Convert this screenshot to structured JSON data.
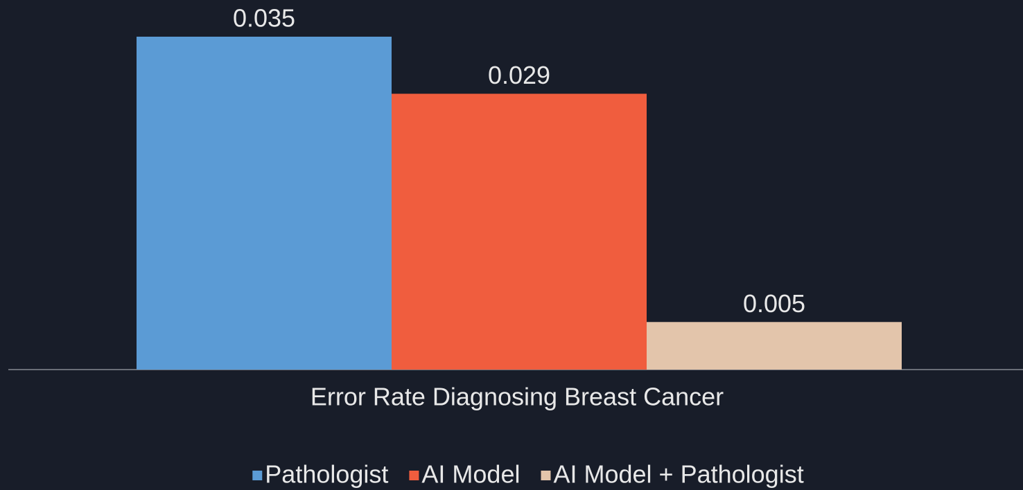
{
  "chart_data": {
    "type": "bar",
    "categories": [
      "Error Rate Diagnosing Breast Cancer"
    ],
    "series": [
      {
        "name": "Pathologist",
        "color": "#5b9bd5",
        "values": [
          0.035
        ]
      },
      {
        "name": "AI Model",
        "color": "#f05d3e",
        "values": [
          0.029
        ]
      },
      {
        "name": "AI Model + Pathologist",
        "color": "#e3c5ab",
        "values": [
          0.005
        ]
      }
    ],
    "legend": "bottom"
  }
}
